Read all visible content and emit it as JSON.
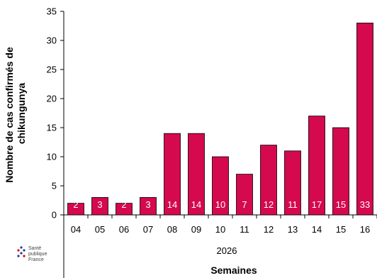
{
  "chart_data": {
    "type": "bar",
    "categories": [
      "04",
      "05",
      "06",
      "07",
      "08",
      "09",
      "10",
      "11",
      "12",
      "13",
      "14",
      "15",
      "16"
    ],
    "values": [
      2,
      3,
      2,
      3,
      14,
      14,
      10,
      7,
      12,
      11,
      17,
      15,
      33
    ],
    "year_label": "2026",
    "xlabel": "Semaines",
    "ylabel": "Nombre de cas confirmés de chikungunya",
    "ylim": [
      0,
      35
    ],
    "yticks": [
      0,
      5,
      10,
      15,
      20,
      25,
      30,
      35
    ],
    "bar_color": "#d5094d",
    "data_labels": true,
    "grid": false
  },
  "logo": {
    "lines": [
      "Santé",
      "publique",
      "France"
    ],
    "accent": "#e1000f",
    "secondary": "#1d3f8f"
  }
}
